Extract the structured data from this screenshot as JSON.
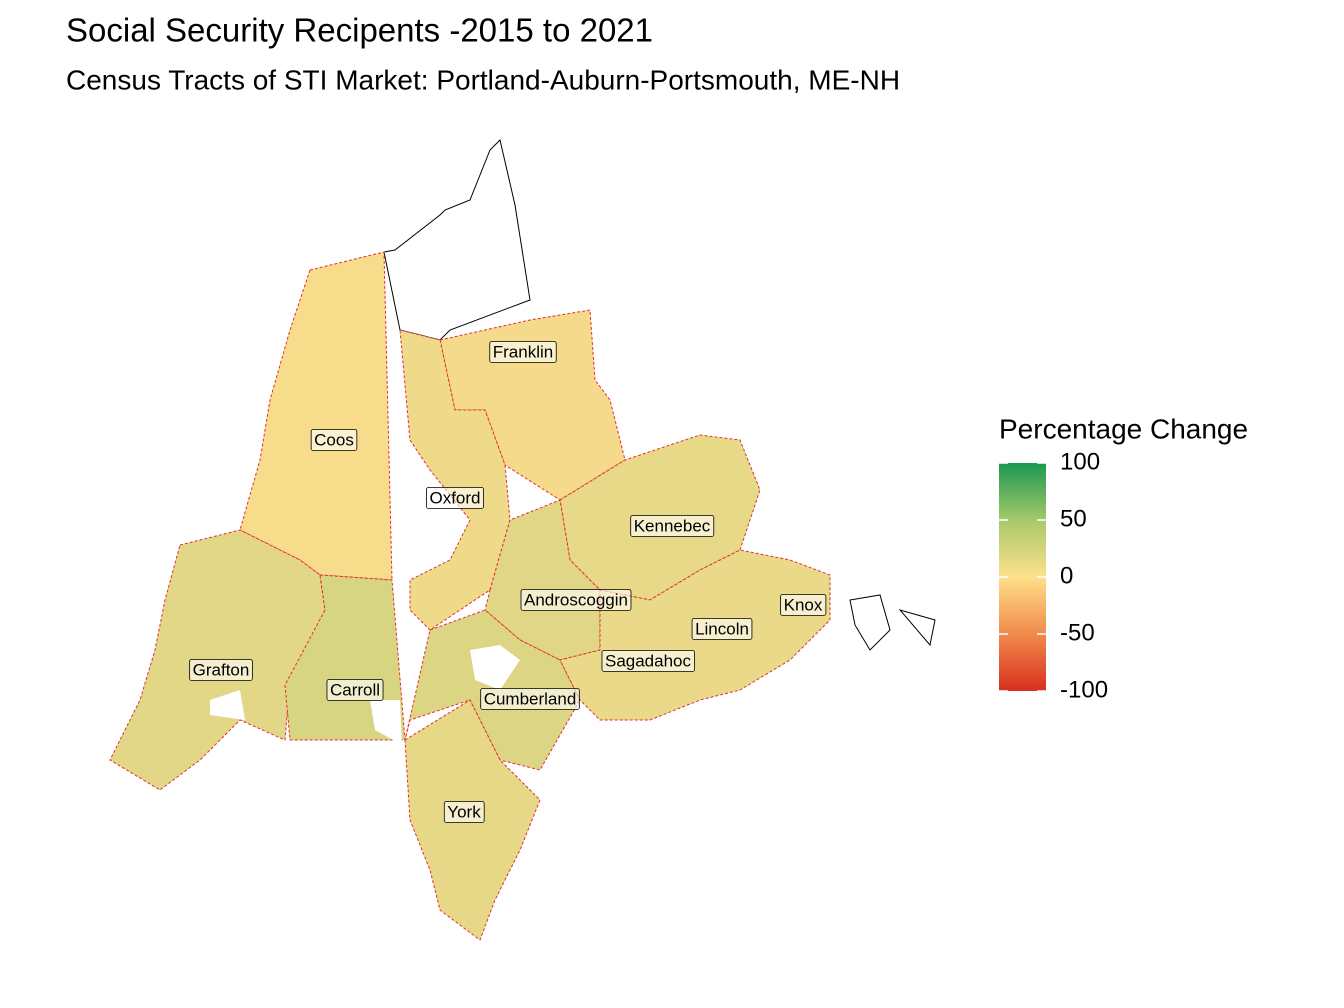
{
  "title": "Social Security Recipents -2015 to 2021",
  "subtitle": "Census Tracts of STI Market: Portland-Auburn-Portsmouth, ME-NH",
  "legend": {
    "title": "Percentage Change",
    "limits": [
      -100,
      100
    ],
    "ticks": [
      100,
      50,
      0,
      -50,
      -100
    ],
    "colors": [
      "#d7301f",
      "#f08a4b",
      "#fee08b",
      "#a6c96a",
      "#1a9850"
    ]
  },
  "counties": [
    {
      "name": "Franklin"
    },
    {
      "name": "Coos"
    },
    {
      "name": "Oxford"
    },
    {
      "name": "Kennebec"
    },
    {
      "name": "Androscoggin"
    },
    {
      "name": "Knox"
    },
    {
      "name": "Lincoln"
    },
    {
      "name": "Sagadahoc"
    },
    {
      "name": "Grafton"
    },
    {
      "name": "Carroll"
    },
    {
      "name": "Cumberland"
    },
    {
      "name": "York"
    }
  ]
}
